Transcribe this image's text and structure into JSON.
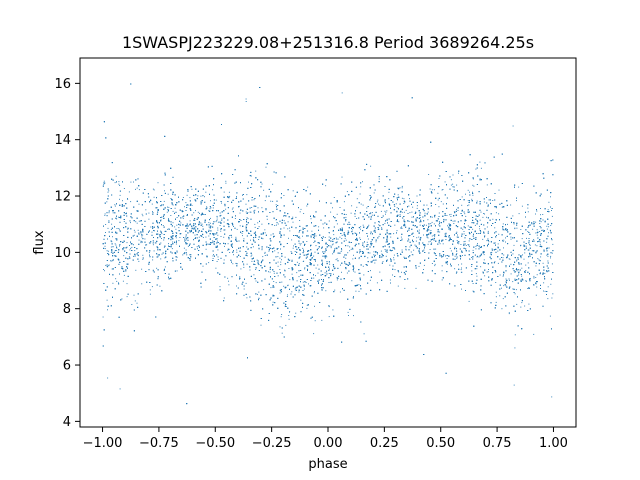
{
  "chart_data": {
    "type": "scatter",
    "title": "1SWASPJ223229.08+251316.8 Period 3689264.25s",
    "xlabel": "phase",
    "ylabel": "flux",
    "xlim": [
      -1.1,
      1.1
    ],
    "ylim": [
      3.8,
      16.9
    ],
    "xticks": [
      -1.0,
      -0.75,
      -0.5,
      -0.25,
      0.0,
      0.25,
      0.5,
      0.75,
      1.0
    ],
    "xtick_labels": [
      "−1.00",
      "−0.75",
      "−0.50",
      "−0.25",
      "0.00",
      "0.25",
      "0.50",
      "0.75",
      "1.00"
    ],
    "yticks": [
      4,
      6,
      8,
      10,
      12,
      14,
      16
    ],
    "ytick_labels": [
      "4",
      "6",
      "8",
      "10",
      "12",
      "14",
      "16"
    ],
    "grid": false,
    "legend": "none",
    "marker_color": "#1f77b4",
    "series": [
      {
        "phase_range": [
          -1.0,
          1.0
        ],
        "profile": [
          {
            "phase": -1.0,
            "median": 10.3,
            "lo": 7.5,
            "hi": 13.0
          },
          {
            "phase": -0.9,
            "median": 10.4,
            "lo": 8.0,
            "hi": 12.8
          },
          {
            "phase": -0.8,
            "median": 10.6,
            "lo": 8.5,
            "hi": 12.5
          },
          {
            "phase": -0.75,
            "median": 10.7,
            "lo": 8.7,
            "hi": 12.3
          },
          {
            "phase": -0.7,
            "median": 10.8,
            "lo": 8.8,
            "hi": 12.3
          },
          {
            "phase": -0.6,
            "median": 10.9,
            "lo": 9.0,
            "hi": 12.2
          },
          {
            "phase": -0.5,
            "median": 10.8,
            "lo": 9.0,
            "hi": 12.3
          },
          {
            "phase": -0.4,
            "median": 10.6,
            "lo": 8.8,
            "hi": 12.7
          },
          {
            "phase": -0.35,
            "median": 10.6,
            "lo": 8.6,
            "hi": 13.8
          },
          {
            "phase": -0.3,
            "median": 10.4,
            "lo": 8.5,
            "hi": 13.2
          },
          {
            "phase": -0.2,
            "median": 9.8,
            "lo": 7.5,
            "hi": 12.5
          },
          {
            "phase": -0.1,
            "median": 9.8,
            "lo": 7.8,
            "hi": 11.8
          },
          {
            "phase": 0.0,
            "median": 10.0,
            "lo": 8.0,
            "hi": 12.0
          },
          {
            "phase": 0.1,
            "median": 10.4,
            "lo": 8.0,
            "hi": 12.8
          },
          {
            "phase": 0.2,
            "median": 10.6,
            "lo": 8.5,
            "hi": 12.5
          },
          {
            "phase": 0.3,
            "median": 10.8,
            "lo": 8.8,
            "hi": 12.3
          },
          {
            "phase": 0.4,
            "median": 10.9,
            "lo": 9.0,
            "hi": 12.2
          },
          {
            "phase": 0.5,
            "median": 10.8,
            "lo": 9.0,
            "hi": 12.5
          },
          {
            "phase": 0.6,
            "median": 10.6,
            "lo": 8.8,
            "hi": 12.7
          },
          {
            "phase": 0.65,
            "median": 10.6,
            "lo": 8.6,
            "hi": 13.8
          },
          {
            "phase": 0.7,
            "median": 10.4,
            "lo": 8.5,
            "hi": 13.0
          },
          {
            "phase": 0.8,
            "median": 9.8,
            "lo": 7.8,
            "hi": 12.6
          },
          {
            "phase": 0.9,
            "median": 9.9,
            "lo": 8.0,
            "hi": 11.8
          },
          {
            "phase": 1.0,
            "median": 10.3,
            "lo": 7.5,
            "hi": 13.0
          }
        ],
        "outlier_range": [
          4.3,
          16.3
        ]
      }
    ]
  }
}
